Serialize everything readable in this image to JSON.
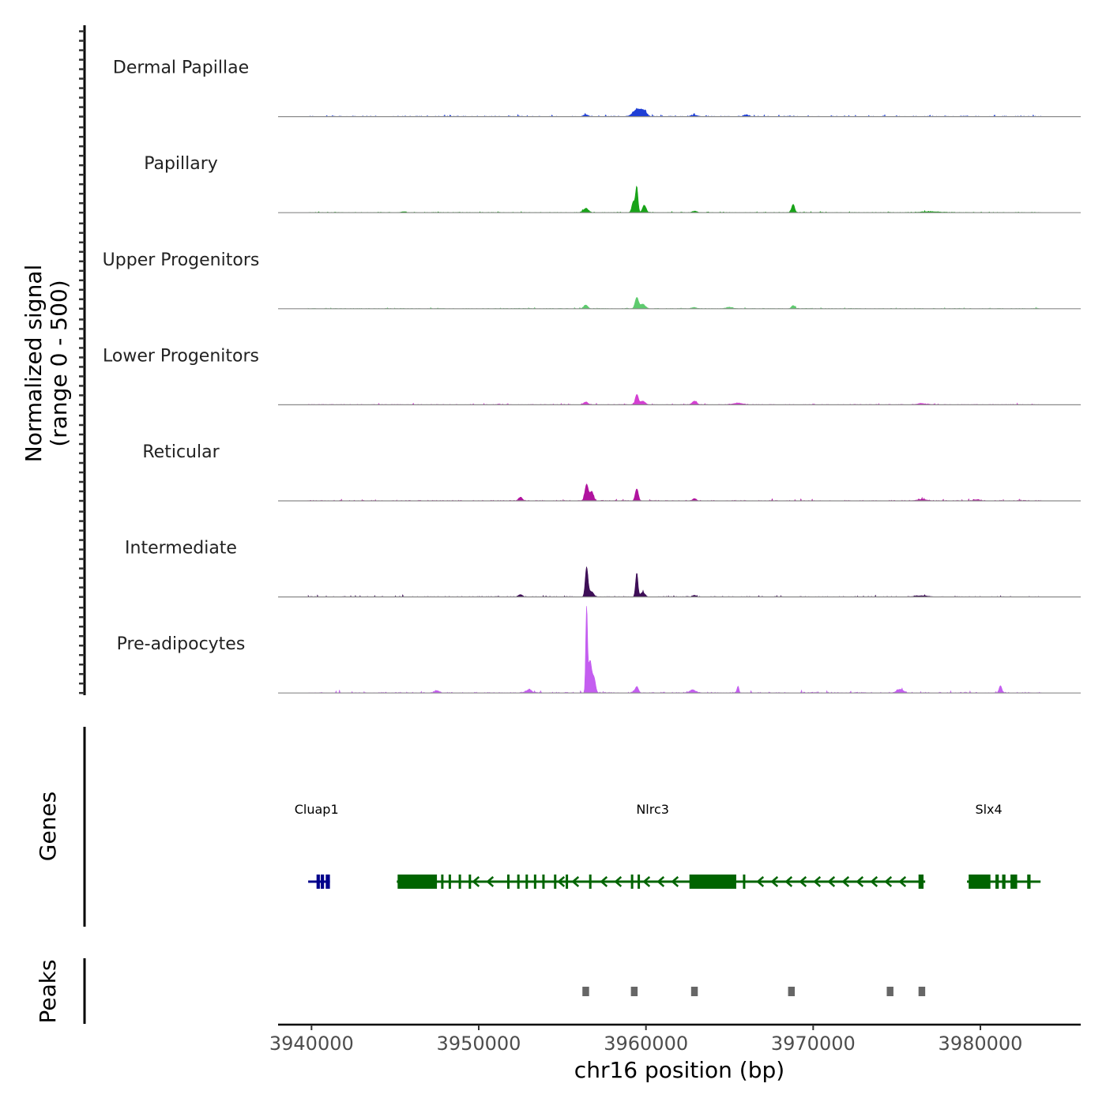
{
  "chart_data": {
    "type": "coverage_track",
    "ylabel_line1": "Normalized signal",
    "ylabel_line2": "(range 0 - 500)",
    "xlabel": "chr16 position (bp)",
    "xlim": [
      3938000,
      3986000
    ],
    "ylim": [
      0,
      500
    ],
    "x_ticks": [
      3940000,
      3950000,
      3960000,
      3970000,
      3980000
    ],
    "x_tick_labels": [
      "3940000",
      "3950000",
      "3960000",
      "3970000",
      "3980000"
    ],
    "tracks": [
      {
        "name": "Dermal Papillae",
        "color": "#1f3fd6",
        "peaks": [
          [
            3959500,
            80,
            250
          ],
          [
            3959900,
            45,
            150
          ],
          [
            3956400,
            20,
            150
          ],
          [
            3962900,
            15,
            200
          ],
          [
            3966000,
            15,
            150
          ]
        ],
        "noise": 8
      },
      {
        "name": "Papillary",
        "color": "#19a319",
        "peaks": [
          [
            3959450,
            280,
            70
          ],
          [
            3959250,
            120,
            90
          ],
          [
            3959900,
            80,
            110
          ],
          [
            3956400,
            45,
            150
          ],
          [
            3968800,
            90,
            90
          ],
          [
            3962900,
            15,
            150
          ],
          [
            3945500,
            10,
            150
          ],
          [
            3977000,
            10,
            600
          ]
        ],
        "noise": 6
      },
      {
        "name": "Upper Progenitors",
        "color": "#5ecb6e",
        "peaks": [
          [
            3959450,
            120,
            100
          ],
          [
            3959800,
            50,
            150
          ],
          [
            3956400,
            40,
            120
          ],
          [
            3968800,
            35,
            100
          ],
          [
            3965000,
            15,
            200
          ],
          [
            3962900,
            12,
            150
          ]
        ],
        "noise": 5
      },
      {
        "name": "Lower Progenitors",
        "color": "#d43fd2",
        "peaks": [
          [
            3959450,
            110,
            90
          ],
          [
            3959800,
            40,
            150
          ],
          [
            3956400,
            30,
            130
          ],
          [
            3962900,
            40,
            140
          ],
          [
            3965500,
            18,
            300
          ],
          [
            3976500,
            12,
            300
          ]
        ],
        "noise": 6
      },
      {
        "name": "Reticular",
        "color": "#b0139e",
        "peaks": [
          [
            3956450,
            180,
            100
          ],
          [
            3956750,
            100,
            110
          ],
          [
            3959450,
            130,
            90
          ],
          [
            3952500,
            40,
            110
          ],
          [
            3962900,
            25,
            110
          ],
          [
            3976500,
            15,
            300
          ],
          [
            3979800,
            12,
            200
          ]
        ],
        "noise": 7
      },
      {
        "name": "Intermediate",
        "color": "#3e0f57",
        "peaks": [
          [
            3956450,
            310,
            80
          ],
          [
            3956700,
            60,
            150
          ],
          [
            3959450,
            260,
            70
          ],
          [
            3959800,
            50,
            130
          ],
          [
            3952500,
            25,
            120
          ],
          [
            3962900,
            15,
            120
          ],
          [
            3976500,
            12,
            400
          ]
        ],
        "noise": 7
      },
      {
        "name": "Pre-adipocytes",
        "color": "#c45ef0",
        "peaks": [
          [
            3956450,
            920,
            50
          ],
          [
            3956650,
            350,
            110
          ],
          [
            3956900,
            150,
            90
          ],
          [
            3959450,
            70,
            100
          ],
          [
            3965500,
            70,
            60
          ],
          [
            3981200,
            80,
            80
          ],
          [
            3975200,
            40,
            200
          ],
          [
            3953000,
            35,
            150
          ],
          [
            3962800,
            35,
            150
          ],
          [
            3947500,
            25,
            150
          ]
        ],
        "noise": 10
      }
    ],
    "genes_track_label": "Genes",
    "genes": [
      {
        "name": "Cluap1",
        "start": 3939800,
        "end": 3941100,
        "strand": "+",
        "color": "#00008b",
        "exons": [
          [
            3940300,
            3940500
          ],
          [
            3940550,
            3940750
          ],
          [
            3940850,
            3941100
          ]
        ],
        "label_x": 3940300
      },
      {
        "name": "Nlrc3",
        "start": 3945100,
        "end": 3976700,
        "strand": "-",
        "color": "#006400",
        "exons": [
          [
            3945150,
            3947500
          ],
          [
            3947750,
            3947850
          ],
          [
            3948200,
            3948300
          ],
          [
            3948800,
            3948900
          ],
          [
            3949400,
            3949500
          ],
          [
            3951700,
            3951800
          ],
          [
            3952300,
            3952400
          ],
          [
            3952800,
            3952900
          ],
          [
            3953300,
            3953400
          ],
          [
            3953800,
            3953900
          ],
          [
            3954500,
            3954600
          ],
          [
            3955200,
            3955300
          ],
          [
            3956600,
            3956700
          ],
          [
            3959100,
            3959200
          ],
          [
            3959500,
            3959600
          ],
          [
            3962600,
            3965400
          ],
          [
            3965800,
            3965900
          ],
          [
            3976300,
            3976600
          ]
        ],
        "label_x": 3960400
      },
      {
        "name": "Slx4",
        "start": 3979200,
        "end": 3983600,
        "strand": "-",
        "color": "#006400",
        "exons": [
          [
            3979300,
            3980600
          ],
          [
            3980900,
            3981100
          ],
          [
            3981300,
            3981500
          ],
          [
            3981800,
            3982200
          ],
          [
            3982800,
            3983000
          ]
        ],
        "label_x": 3980500
      }
    ],
    "peaks_track_label": "Peaks",
    "peak_regions": [
      [
        3956200,
        3956600
      ],
      [
        3959100,
        3959500
      ],
      [
        3962700,
        3963100
      ],
      [
        3968500,
        3968900
      ],
      [
        3974400,
        3974800
      ],
      [
        3976300,
        3976700
      ]
    ]
  }
}
